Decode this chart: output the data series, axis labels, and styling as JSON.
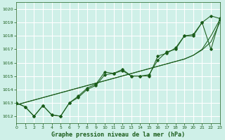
{
  "xlabel": "Graphe pression niveau de la mer (hPa)",
  "background_color": "#cff0e8",
  "grid_color": "#ffffff",
  "line_color": "#1a5c1a",
  "xlim": [
    0,
    23
  ],
  "ylim": [
    1011.5,
    1020.5
  ],
  "yticks": [
    1012,
    1013,
    1014,
    1015,
    1016,
    1017,
    1018,
    1019,
    1020
  ],
  "xticks": [
    0,
    1,
    2,
    3,
    4,
    5,
    6,
    7,
    8,
    9,
    10,
    11,
    12,
    13,
    14,
    15,
    16,
    17,
    18,
    19,
    20,
    21,
    22,
    23
  ],
  "series1": [
    1013.0,
    1012.7,
    1012.0,
    1012.8,
    1012.1,
    1012.0,
    1013.0,
    1013.5,
    1014.1,
    1014.4,
    1015.3,
    1015.2,
    1015.5,
    1015.0,
    1015.0,
    1015.0,
    1016.5,
    1016.7,
    1017.1,
    1018.0,
    1018.1,
    1019.0,
    1019.5,
    1019.3
  ],
  "series2": [
    1013.0,
    1012.7,
    1012.0,
    1012.8,
    1012.1,
    1012.0,
    1013.0,
    1013.4,
    1014.0,
    1014.3,
    1015.1,
    1015.2,
    1015.4,
    1015.0,
    1015.0,
    1015.1,
    1016.2,
    1016.8,
    1017.0,
    1018.0,
    1018.0,
    1019.0,
    1017.0,
    1019.2
  ],
  "trend1": [
    1012.85,
    1013.03,
    1013.21,
    1013.39,
    1013.57,
    1013.75,
    1013.93,
    1014.11,
    1014.29,
    1014.47,
    1014.65,
    1014.83,
    1015.01,
    1015.19,
    1015.37,
    1015.55,
    1015.73,
    1015.91,
    1016.09,
    1016.27,
    1016.55,
    1016.95,
    1017.55,
    1019.0
  ],
  "trend2": [
    1012.85,
    1013.03,
    1013.21,
    1013.39,
    1013.57,
    1013.75,
    1013.93,
    1014.11,
    1014.29,
    1014.47,
    1014.65,
    1014.83,
    1015.01,
    1015.19,
    1015.37,
    1015.55,
    1015.73,
    1015.91,
    1016.09,
    1016.27,
    1016.55,
    1017.0,
    1018.0,
    1019.2
  ]
}
